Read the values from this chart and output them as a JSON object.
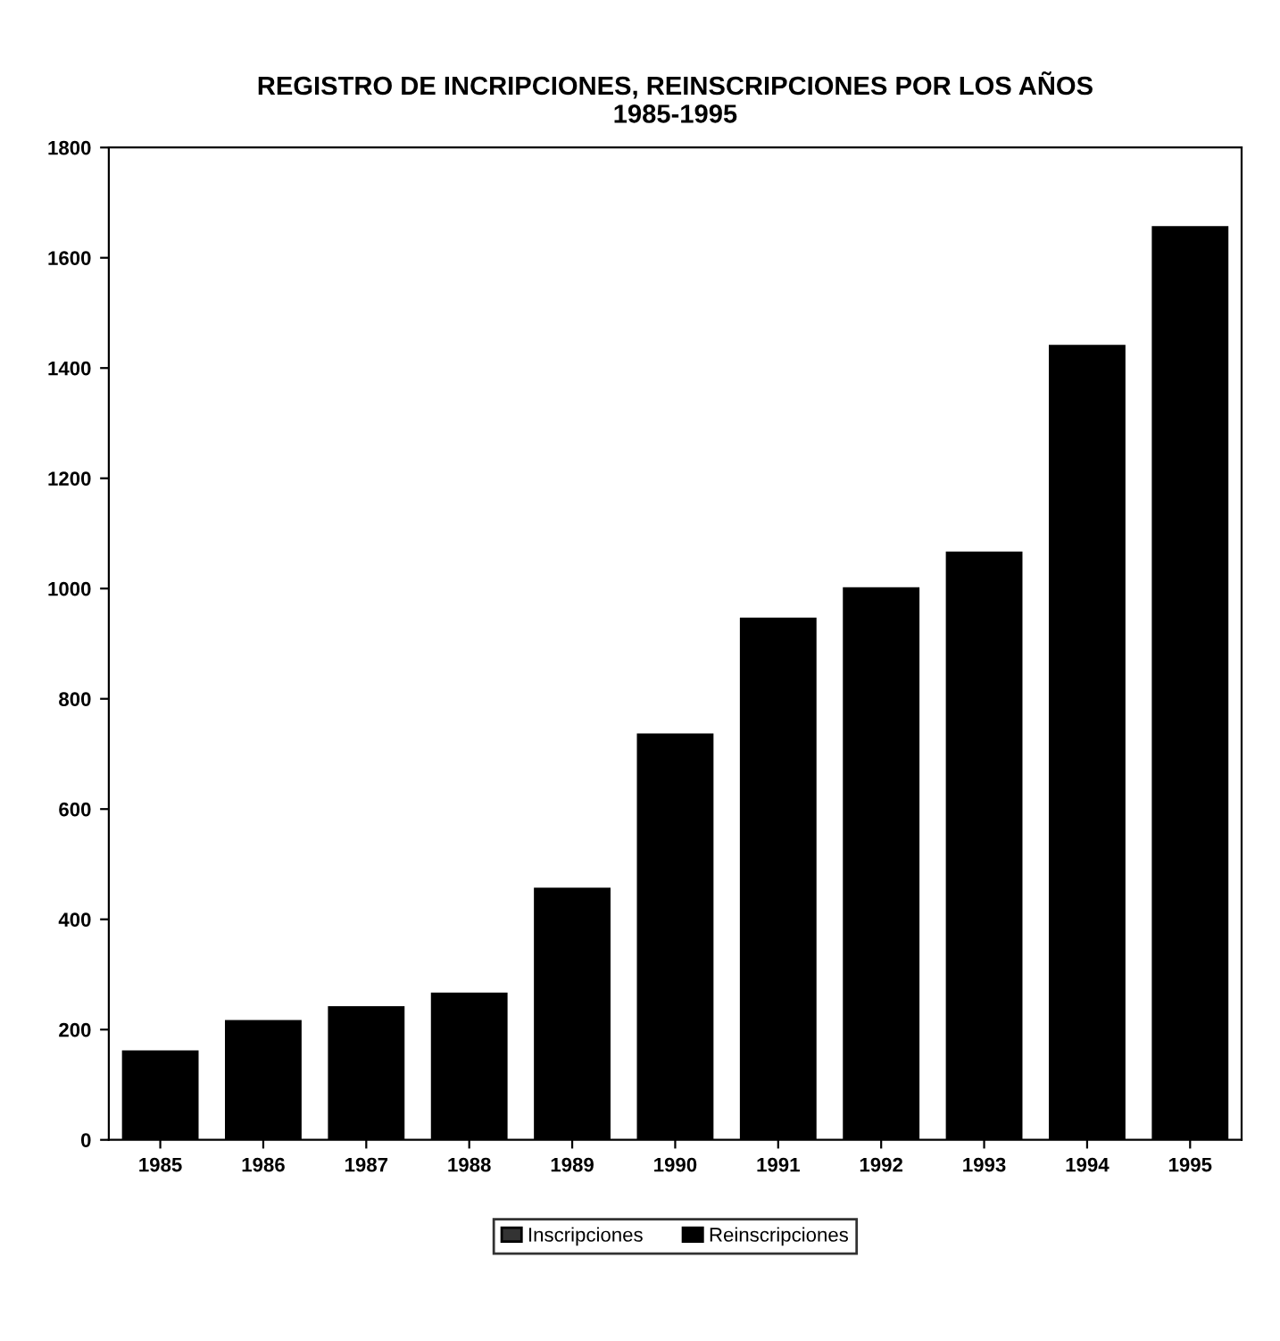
{
  "chart_data": {
    "type": "bar",
    "title": "REGISTRO DE INCRIPCIONES, REINSCRIPCIONES POR LOS AÑOS\n1985-1995",
    "categories": [
      "1985",
      "1986",
      "1987",
      "1988",
      "1989",
      "1990",
      "1991",
      "1992",
      "1993",
      "1994",
      "1995"
    ],
    "series": [
      {
        "name": "Inscripciones",
        "color": "#333333",
        "values": [
          null,
          null,
          null,
          null,
          null,
          null,
          null,
          null,
          null,
          null,
          null
        ]
      },
      {
        "name": "Reinscripciones",
        "color": "#000000",
        "values": [
          160,
          215,
          240,
          265,
          455,
          735,
          945,
          1000,
          1065,
          1440,
          1655
        ]
      }
    ],
    "ylim": [
      0,
      1800
    ],
    "yticks": [
      0,
      200,
      400,
      600,
      800,
      1000,
      1200,
      1400,
      1600,
      1800
    ],
    "grid": false,
    "legend": "bottom"
  }
}
